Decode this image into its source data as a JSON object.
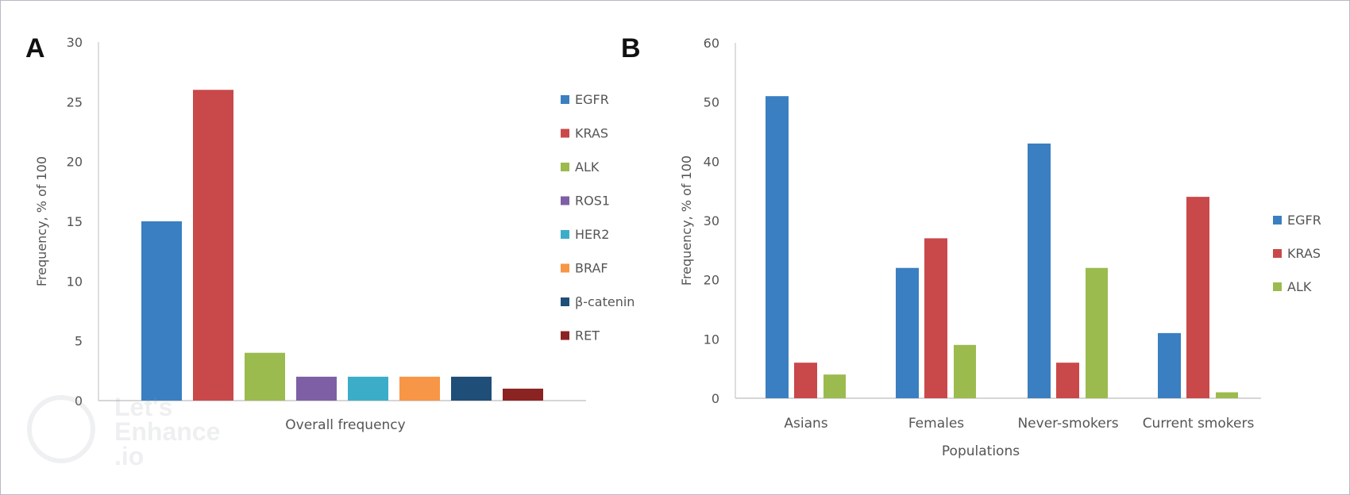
{
  "panels": {
    "a": {
      "letter": "A"
    },
    "b": {
      "letter": "B"
    }
  },
  "watermark": {
    "text": "Let's\nEnhance\n.io"
  },
  "chart_data": [
    {
      "type": "bar",
      "panel": "A",
      "title": "",
      "xlabel": "Overall frequency",
      "ylabel": "Frequency, % of 100",
      "ylim": [
        0,
        30
      ],
      "yticks": [
        0,
        5,
        10,
        15,
        20,
        25,
        30
      ],
      "grid": false,
      "legend_position": "right",
      "categories": [
        "Overall frequency"
      ],
      "series": [
        {
          "name": "EGFR",
          "values": [
            15
          ],
          "color": "#3a7fc1"
        },
        {
          "name": "KRAS",
          "values": [
            26
          ],
          "color": "#c9484a"
        },
        {
          "name": "ALK",
          "values": [
            4
          ],
          "color": "#9bbb4f"
        },
        {
          "name": "ROS1",
          "values": [
            2
          ],
          "color": "#7e5fa5"
        },
        {
          "name": "HER2",
          "values": [
            2
          ],
          "color": "#3cadc9"
        },
        {
          "name": "BRAF",
          "values": [
            2
          ],
          "color": "#f79646"
        },
        {
          "name": "β-catenin",
          "values": [
            2
          ],
          "color": "#1f4e79"
        },
        {
          "name": "RET",
          "values": [
            1
          ],
          "color": "#8b2323"
        }
      ]
    },
    {
      "type": "bar",
      "panel": "B",
      "title": "",
      "xlabel": "Populations",
      "ylabel": "Frequency, % of 100",
      "ylim": [
        0,
        60
      ],
      "yticks": [
        0,
        10,
        20,
        30,
        40,
        50,
        60
      ],
      "grid": false,
      "legend_position": "right",
      "categories": [
        "Asians",
        "Females",
        "Never-smokers",
        "Current smokers"
      ],
      "series": [
        {
          "name": "EGFR",
          "values": [
            51,
            22,
            43,
            11
          ],
          "color": "#3a7fc1"
        },
        {
          "name": "KRAS",
          "values": [
            6,
            27,
            6,
            34
          ],
          "color": "#c9484a"
        },
        {
          "name": "ALK",
          "values": [
            4,
            9,
            22,
            1
          ],
          "color": "#9bbb4f"
        }
      ]
    }
  ]
}
